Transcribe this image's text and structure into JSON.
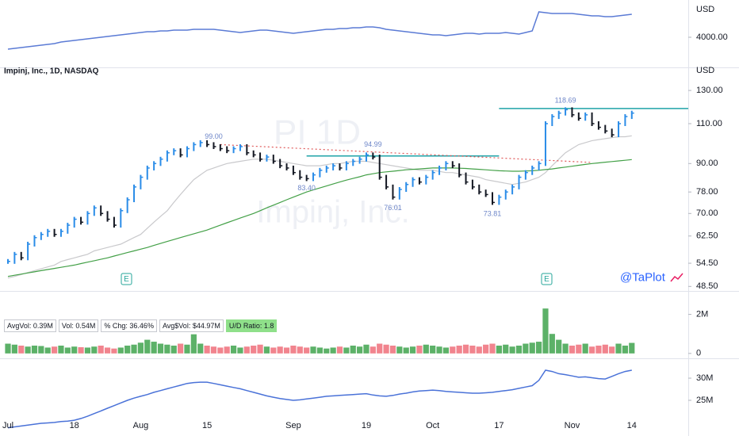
{
  "chart_data": [
    {
      "type": "line",
      "unit": "USD",
      "color": "#5b7bd5",
      "ylim": [
        3620,
        4470
      ],
      "yticks": [
        {
          "value": 4000,
          "label": "4000.00"
        }
      ],
      "values": [
        3850,
        3860,
        3870,
        3880,
        3890,
        3900,
        3910,
        3920,
        3940,
        3950,
        3960,
        3970,
        3980,
        3990,
        4000,
        4010,
        4020,
        4030,
        4040,
        4050,
        4060,
        4070,
        4070,
        4080,
        4080,
        4090,
        4090,
        4090,
        4100,
        4100,
        4100,
        4100,
        4090,
        4080,
        4070,
        4060,
        4070,
        4080,
        4090,
        4090,
        4080,
        4070,
        4060,
        4050,
        4060,
        4070,
        4080,
        4090,
        4100,
        4100,
        4110,
        4110,
        4120,
        4120,
        4130,
        4130,
        4120,
        4100,
        4090,
        4080,
        4070,
        4060,
        4050,
        4040,
        4030,
        4030,
        4020,
        4030,
        4040,
        4050,
        4050,
        4040,
        4050,
        4050,
        4050,
        4060,
        4050,
        4040,
        4060,
        4080,
        4320,
        4310,
        4300,
        4300,
        4300,
        4300,
        4290,
        4280,
        4270,
        4270,
        4260,
        4260,
        4270,
        4280,
        4290
      ]
    },
    {
      "type": "ohlc",
      "title": "Impinj, Inc., 1D, NASDAQ",
      "unit": "USD",
      "log": true,
      "watermark": [
        "PI 1D",
        "Impinj, Inc."
      ],
      "brand": "@TaPlot",
      "earnings": [
        "E",
        "E"
      ],
      "up_color": "#2a8ce8",
      "down_color": "#131722",
      "ylim": [
        47.6,
        146
      ],
      "yticks": [
        {
          "value": 48.5,
          "label": "48.50"
        },
        {
          "value": 54.5,
          "label": "54.50"
        },
        {
          "value": 62.5,
          "label": "62.50"
        },
        {
          "value": 70,
          "label": "70.00"
        },
        {
          "value": 78,
          "label": "78.00"
        },
        {
          "value": 90,
          "label": "90.00"
        },
        {
          "value": 110,
          "label": "110.00"
        },
        {
          "value": 130,
          "label": "130.00"
        }
      ],
      "categories": [
        "Jul",
        null,
        null,
        null,
        null,
        null,
        null,
        null,
        null,
        null,
        "18",
        null,
        null,
        null,
        null,
        null,
        null,
        null,
        null,
        null,
        "Aug",
        null,
        null,
        null,
        null,
        null,
        null,
        null,
        null,
        null,
        "15",
        null,
        null,
        null,
        null,
        null,
        null,
        null,
        null,
        null,
        null,
        null,
        null,
        "Sep",
        null,
        null,
        null,
        null,
        null,
        null,
        null,
        null,
        null,
        null,
        "19",
        null,
        null,
        null,
        null,
        null,
        null,
        null,
        null,
        null,
        "Oct",
        null,
        null,
        null,
        null,
        null,
        null,
        null,
        null,
        null,
        "17",
        null,
        null,
        null,
        null,
        null,
        null,
        null,
        null,
        null,
        null,
        "Nov",
        null,
        null,
        null,
        null,
        null,
        null,
        null,
        null,
        "14"
      ],
      "values": [
        55,
        57,
        56,
        60,
        62,
        63,
        64,
        63,
        64,
        66,
        68,
        67,
        70,
        72,
        70,
        68,
        66,
        71,
        75,
        80,
        84,
        88,
        90,
        92,
        95,
        96,
        94,
        97,
        99,
        100,
        99,
        98,
        97,
        96,
        97,
        98,
        95,
        94,
        92,
        93,
        91,
        89,
        88,
        86,
        84,
        83.4,
        85,
        87,
        88,
        89,
        88,
        90,
        91,
        92,
        94,
        93,
        84,
        80,
        76,
        79,
        81,
        83,
        82,
        84,
        86,
        88,
        90,
        89,
        85,
        82,
        80,
        78,
        77,
        74,
        76,
        78,
        80,
        84,
        86,
        88,
        90,
        110,
        114,
        116,
        118,
        115,
        113,
        115,
        110,
        108,
        106,
        104,
        110,
        114,
        116
      ],
      "overlays": [
        {
          "color": "#c9c9cc",
          "values": [
            50.6,
            51,
            51.5,
            52,
            52.5,
            53,
            53.5,
            54,
            55,
            55.5,
            56,
            56.5,
            57,
            58,
            58.5,
            59,
            59.5,
            60,
            61,
            62,
            63,
            65,
            67,
            69,
            71,
            74,
            77,
            80,
            83,
            85,
            87,
            88,
            89,
            90,
            90.5,
            91,
            91.5,
            92,
            92,
            92,
            91.5,
            91,
            90.5,
            90,
            89.5,
            89,
            89,
            89,
            89.5,
            90,
            90,
            90.5,
            91,
            91,
            91,
            90.5,
            90,
            89.5,
            89,
            88.5,
            88,
            87.5,
            87,
            87,
            87,
            86.5,
            86,
            86,
            85.5,
            85,
            84.5,
            84,
            83,
            82.5,
            82,
            81.5,
            81,
            81.5,
            82,
            83,
            84,
            86,
            89,
            92,
            95,
            97,
            99,
            100,
            101,
            101.5,
            102,
            102.5,
            103,
            103,
            103.5
          ]
        },
        {
          "color": "#43a047",
          "values": [
            51,
            51.3,
            51.6,
            51.9,
            52.2,
            52.5,
            52.8,
            53.1,
            53.4,
            53.7,
            54,
            54.4,
            54.8,
            55.2,
            55.6,
            56,
            56.5,
            57,
            57.5,
            58,
            58.5,
            59,
            59.6,
            60.2,
            60.8,
            61.4,
            62,
            62.6,
            63.2,
            63.8,
            64.4,
            65.2,
            66,
            66.8,
            67.6,
            68.4,
            69.2,
            70,
            71,
            72,
            73,
            74,
            75,
            76,
            77,
            78,
            78.8,
            79.6,
            80.4,
            81.2,
            82,
            82.8,
            83.5,
            84.2,
            85,
            85.5,
            86,
            86.3,
            86.6,
            86.9,
            87.2,
            87.4,
            87.6,
            87.8,
            88,
            88,
            88,
            88,
            87.9,
            87.8,
            87.6,
            87.4,
            87.2,
            87,
            86.8,
            86.7,
            86.6,
            86.6,
            86.7,
            86.8,
            87,
            87.3,
            87.6,
            88,
            88.4,
            88.8,
            89.2,
            89.6,
            90,
            90.3,
            90.6,
            90.9,
            91.2,
            91.5,
            91.8
          ]
        }
      ],
      "levels": [
        118.69,
        93.5
      ],
      "level_color": "#1fa3a8",
      "trendline": [
        99,
        90.5
      ],
      "trend_color": "#e05a5a",
      "price_labels": [
        {
          "value": 99,
          "label": "99.00"
        },
        {
          "value": 83.4,
          "label": "83.40"
        },
        {
          "value": 94.99,
          "label": "94.99"
        },
        {
          "value": 76.01,
          "label": "76.01"
        },
        {
          "value": 73.81,
          "label": "73.81"
        },
        {
          "value": 118.69,
          "label": "118.69"
        }
      ]
    },
    {
      "type": "bar",
      "up_color": "#3fa34d",
      "down_color": "#ef6f7a",
      "stats": [
        "AvgVol: 0.39M",
        "Vol: 0.54M",
        "% Chg: 36.46%",
        "Avg$Vol: $44.97M",
        "U/D Ratio: 1.8"
      ],
      "ylim": [
        -250000.0,
        3200000.0
      ],
      "yticks": [
        0,
        {
          "value": 2000000.0,
          "label": "2M"
        }
      ],
      "values": [
        500000.0,
        450000.0,
        400000.0,
        350000.0,
        400000.0,
        380000.0,
        300000.0,
        350000.0,
        400000.0,
        300000.0,
        350000.0,
        320000.0,
        300000.0,
        350000.0,
        400000.0,
        300000.0,
        250000.0,
        300000.0,
        400000.0,
        450000.0,
        550000.0,
        700000.0,
        600000.0,
        500000.0,
        450000.0,
        400000.0,
        500000.0,
        450000.0,
        980000.0,
        500000.0,
        400000.0,
        350000.0,
        300000.0,
        350000.0,
        400000.0,
        300000.0,
        350000.0,
        400000.0,
        450000.0,
        350000.0,
        300000.0,
        350000.0,
        300000.0,
        400000.0,
        350000.0,
        300000.0,
        350000.0,
        300000.0,
        250000.0,
        300000.0,
        350000.0,
        300000.0,
        400000.0,
        350000.0,
        450000.0,
        350000.0,
        500000.0,
        450000.0,
        400000.0,
        350000.0,
        300000.0,
        350000.0,
        400000.0,
        450000.0,
        400000.0,
        350000.0,
        300000.0,
        350000.0,
        400000.0,
        450000.0,
        400000.0,
        350000.0,
        450000.0,
        500000.0,
        400000.0,
        450000.0,
        350000.0,
        400000.0,
        500000.0,
        550000.0,
        600000.0,
        2300000.0,
        1000000.0,
        700000.0,
        500000.0,
        400000.0,
        450000.0,
        500000.0,
        350000.0,
        400000.0,
        450000.0,
        350000.0,
        500000.0,
        400000.0,
        540000.0
      ]
    },
    {
      "type": "line",
      "color": "#4a72d8",
      "ylim": [
        17300000.0,
        34300000.0
      ],
      "yticks": [
        {
          "value": 25000000.0,
          "label": "25M"
        },
        {
          "value": 30000000.0,
          "label": "30M"
        }
      ],
      "values": [
        18800000.0,
        19000000.0,
        19200000.0,
        19400000.0,
        19600000.0,
        19800000.0,
        19900000.0,
        20000000.0,
        20200000.0,
        20300000.0,
        20500000.0,
        20900000.0,
        21400000.0,
        22000000.0,
        22600000.0,
        23200000.0,
        23800000.0,
        24400000.0,
        25000000.0,
        25500000.0,
        25900000.0,
        26300000.0,
        26800000.0,
        27200000.0,
        27600000.0,
        28000000.0,
        28400000.0,
        28800000.0,
        29000000.0,
        29100000.0,
        29100000.0,
        28800000.0,
        28500000.0,
        28200000.0,
        27900000.0,
        27600000.0,
        27200000.0,
        26800000.0,
        26400000.0,
        26000000.0,
        25700000.0,
        25400000.0,
        25200000.0,
        25000000.0,
        25100000.0,
        25300000.0,
        25500000.0,
        25700000.0,
        25900000.0,
        26000000.0,
        26100000.0,
        26200000.0,
        26300000.0,
        26400000.0,
        26500000.0,
        26200000.0,
        26000000.0,
        25900000.0,
        26100000.0,
        26400000.0,
        26600000.0,
        26900000.0,
        27100000.0,
        27200000.0,
        27300000.0,
        27200000.0,
        27000000.0,
        26900000.0,
        26800000.0,
        26700000.0,
        26600000.0,
        26600000.0,
        26700000.0,
        26800000.0,
        27000000.0,
        27200000.0,
        27400000.0,
        27700000.0,
        28000000.0,
        28300000.0,
        29500000.0,
        31800000.0,
        31500000.0,
        31000000.0,
        30800000.0,
        30500000.0,
        30200000.0,
        30300000.0,
        30100000.0,
        29900000.0,
        29800000.0,
        30400000.0,
        31000000.0,
        31500000.0,
        31800000.0
      ]
    }
  ]
}
